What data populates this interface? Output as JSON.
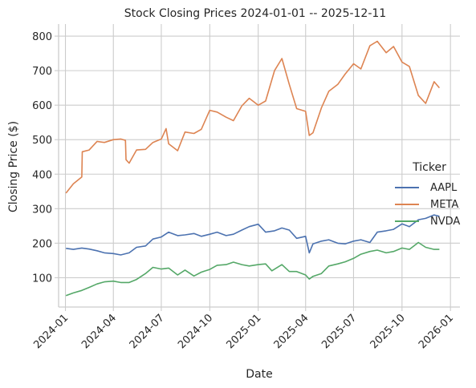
{
  "chart_data": {
    "type": "line",
    "title": "Stock Closing Prices 2024-01-01 -- 2025-12-11",
    "xlabel": "Date",
    "ylabel": "Closing Price ($)",
    "x_ticks": [
      "2024-01",
      "2024-04",
      "2024-07",
      "2024-10",
      "2025-01",
      "2025-04",
      "2025-07",
      "2025-10",
      "2026-01"
    ],
    "y_ticks": [
      100,
      200,
      300,
      400,
      500,
      600,
      700,
      800
    ],
    "ylim": [
      15,
      835
    ],
    "xlim": [
      "2023-12-19",
      "2026-01-19"
    ],
    "grid": true,
    "legend": {
      "title": "Ticker",
      "position": "right"
    },
    "series": [
      {
        "name": "AAPL",
        "color": "#4c72b0",
        "points": [
          [
            "2024-01-02",
            185
          ],
          [
            "2024-01-16",
            182
          ],
          [
            "2024-02-01",
            186
          ],
          [
            "2024-02-15",
            183
          ],
          [
            "2024-03-01",
            178
          ],
          [
            "2024-03-15",
            172
          ],
          [
            "2024-04-01",
            170
          ],
          [
            "2024-04-15",
            166
          ],
          [
            "2024-05-01",
            172
          ],
          [
            "2024-05-15",
            188
          ],
          [
            "2024-06-01",
            192
          ],
          [
            "2024-06-15",
            212
          ],
          [
            "2024-07-01",
            218
          ],
          [
            "2024-07-15",
            232
          ],
          [
            "2024-08-01",
            222
          ],
          [
            "2024-08-15",
            224
          ],
          [
            "2024-09-01",
            228
          ],
          [
            "2024-09-15",
            220
          ],
          [
            "2024-10-01",
            226
          ],
          [
            "2024-10-15",
            232
          ],
          [
            "2024-11-01",
            222
          ],
          [
            "2024-11-15",
            226
          ],
          [
            "2024-12-01",
            238
          ],
          [
            "2024-12-15",
            248
          ],
          [
            "2025-01-01",
            255
          ],
          [
            "2025-01-15",
            232
          ],
          [
            "2025-02-01",
            236
          ],
          [
            "2025-02-15",
            244
          ],
          [
            "2025-03-01",
            238
          ],
          [
            "2025-03-15",
            214
          ],
          [
            "2025-04-01",
            220
          ],
          [
            "2025-04-08",
            172
          ],
          [
            "2025-04-15",
            198
          ],
          [
            "2025-05-01",
            206
          ],
          [
            "2025-05-15",
            210
          ],
          [
            "2025-06-01",
            200
          ],
          [
            "2025-06-15",
            198
          ],
          [
            "2025-07-01",
            206
          ],
          [
            "2025-07-15",
            210
          ],
          [
            "2025-08-01",
            202
          ],
          [
            "2025-08-15",
            232
          ],
          [
            "2025-09-01",
            236
          ],
          [
            "2025-09-15",
            240
          ],
          [
            "2025-10-01",
            256
          ],
          [
            "2025-10-15",
            248
          ],
          [
            "2025-11-01",
            268
          ],
          [
            "2025-11-15",
            272
          ],
          [
            "2025-12-01",
            282
          ],
          [
            "2025-12-11",
            278
          ]
        ]
      },
      {
        "name": "META",
        "color": "#dd8452",
        "points": [
          [
            "2024-01-02",
            345
          ],
          [
            "2024-01-16",
            372
          ],
          [
            "2024-02-01",
            392
          ],
          [
            "2024-02-02",
            465
          ],
          [
            "2024-02-15",
            470
          ],
          [
            "2024-03-01",
            495
          ],
          [
            "2024-03-15",
            492
          ],
          [
            "2024-04-01",
            500
          ],
          [
            "2024-04-15",
            502
          ],
          [
            "2024-04-24",
            498
          ],
          [
            "2024-04-25",
            442
          ],
          [
            "2024-05-01",
            432
          ],
          [
            "2024-05-15",
            470
          ],
          [
            "2024-06-01",
            472
          ],
          [
            "2024-06-15",
            492
          ],
          [
            "2024-07-01",
            502
          ],
          [
            "2024-07-10",
            532
          ],
          [
            "2024-07-15",
            488
          ],
          [
            "2024-08-01",
            468
          ],
          [
            "2024-08-15",
            522
          ],
          [
            "2024-09-01",
            518
          ],
          [
            "2024-09-15",
            530
          ],
          [
            "2024-10-01",
            585
          ],
          [
            "2024-10-15",
            580
          ],
          [
            "2024-11-01",
            565
          ],
          [
            "2024-11-15",
            555
          ],
          [
            "2024-12-01",
            598
          ],
          [
            "2024-12-15",
            620
          ],
          [
            "2025-01-01",
            600
          ],
          [
            "2025-01-15",
            612
          ],
          [
            "2025-02-01",
            700
          ],
          [
            "2025-02-15",
            735
          ],
          [
            "2025-03-01",
            660
          ],
          [
            "2025-03-15",
            590
          ],
          [
            "2025-04-01",
            582
          ],
          [
            "2025-04-08",
            512
          ],
          [
            "2025-04-15",
            520
          ],
          [
            "2025-05-01",
            592
          ],
          [
            "2025-05-15",
            640
          ],
          [
            "2025-06-01",
            660
          ],
          [
            "2025-06-15",
            690
          ],
          [
            "2025-07-01",
            720
          ],
          [
            "2025-07-15",
            705
          ],
          [
            "2025-08-01",
            772
          ],
          [
            "2025-08-15",
            785
          ],
          [
            "2025-09-01",
            752
          ],
          [
            "2025-09-15",
            770
          ],
          [
            "2025-10-01",
            725
          ],
          [
            "2025-10-15",
            712
          ],
          [
            "2025-11-01",
            628
          ],
          [
            "2025-11-15",
            605
          ],
          [
            "2025-12-01",
            668
          ],
          [
            "2025-12-11",
            650
          ]
        ]
      },
      {
        "name": "NVDA",
        "color": "#55a868",
        "points": [
          [
            "2024-01-02",
            48
          ],
          [
            "2024-01-16",
            56
          ],
          [
            "2024-02-01",
            63
          ],
          [
            "2024-02-15",
            72
          ],
          [
            "2024-03-01",
            82
          ],
          [
            "2024-03-15",
            88
          ],
          [
            "2024-04-01",
            90
          ],
          [
            "2024-04-15",
            86
          ],
          [
            "2024-05-01",
            86
          ],
          [
            "2024-05-15",
            95
          ],
          [
            "2024-06-01",
            112
          ],
          [
            "2024-06-15",
            130
          ],
          [
            "2024-07-01",
            125
          ],
          [
            "2024-07-15",
            128
          ],
          [
            "2024-08-01",
            108
          ],
          [
            "2024-08-15",
            122
          ],
          [
            "2024-09-01",
            105
          ],
          [
            "2024-09-15",
            116
          ],
          [
            "2024-10-01",
            124
          ],
          [
            "2024-10-15",
            136
          ],
          [
            "2024-11-01",
            138
          ],
          [
            "2024-11-15",
            145
          ],
          [
            "2024-12-01",
            138
          ],
          [
            "2024-12-15",
            134
          ],
          [
            "2025-01-01",
            138
          ],
          [
            "2025-01-15",
            140
          ],
          [
            "2025-01-27",
            120
          ],
          [
            "2025-02-15",
            138
          ],
          [
            "2025-03-01",
            118
          ],
          [
            "2025-03-15",
            118
          ],
          [
            "2025-04-01",
            108
          ],
          [
            "2025-04-08",
            96
          ],
          [
            "2025-04-15",
            104
          ],
          [
            "2025-05-01",
            112
          ],
          [
            "2025-05-15",
            134
          ],
          [
            "2025-06-01",
            140
          ],
          [
            "2025-06-15",
            146
          ],
          [
            "2025-07-01",
            156
          ],
          [
            "2025-07-15",
            168
          ],
          [
            "2025-08-01",
            176
          ],
          [
            "2025-08-15",
            180
          ],
          [
            "2025-09-01",
            172
          ],
          [
            "2025-09-15",
            176
          ],
          [
            "2025-10-01",
            186
          ],
          [
            "2025-10-15",
            182
          ],
          [
            "2025-11-01",
            202
          ],
          [
            "2025-11-15",
            188
          ],
          [
            "2025-12-01",
            182
          ],
          [
            "2025-12-11",
            182
          ]
        ]
      }
    ]
  }
}
